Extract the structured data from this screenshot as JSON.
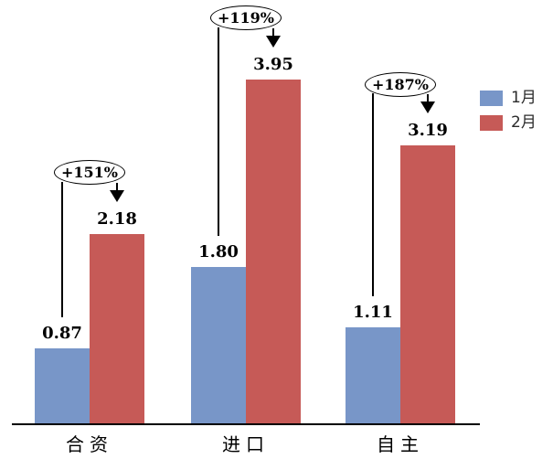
{
  "chart_data": {
    "type": "bar",
    "title": "",
    "xlabel": "",
    "ylabel": "",
    "categories": [
      "合资",
      "进口",
      "自主"
    ],
    "series": [
      {
        "name": "1月",
        "color": "#7896C8",
        "values": [
          0.87,
          1.8,
          1.11
        ],
        "labels": [
          "0.87",
          "1.80",
          "1.11"
        ]
      },
      {
        "name": "2月",
        "color": "#C65A57",
        "values": [
          2.18,
          3.95,
          3.19
        ],
        "labels": [
          "2.18",
          "3.95",
          "3.19"
        ]
      }
    ],
    "annotations": [
      {
        "category": "合资",
        "label": "+151%"
      },
      {
        "category": "进口",
        "label": "+119%"
      },
      {
        "category": "自主",
        "label": "+187%"
      }
    ],
    "legend": {
      "position": "right",
      "entries": [
        "1月",
        "2月"
      ]
    },
    "ylim": [
      0,
      4.8
    ],
    "grid": false,
    "y_axis_visible": false,
    "x_axis_line": true
  }
}
